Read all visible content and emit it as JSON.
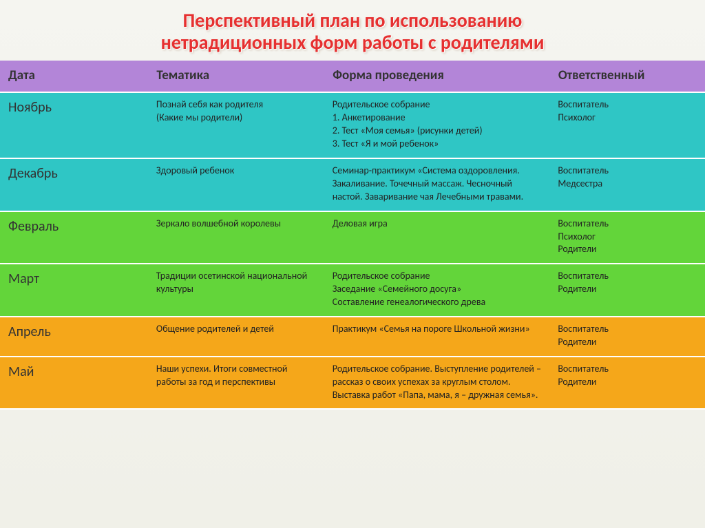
{
  "title_line1": "Перспективный план по использованию",
  "title_line2": "нетрадиционных форм работы с родителями",
  "title_color": "#e63030",
  "header_bg": "#b385d8",
  "columns": {
    "date": "Дата",
    "topic": "Тематика",
    "form": "Форма проведения",
    "resp": "Ответственный"
  },
  "rows": [
    {
      "bg": "#2fc6c5",
      "date": "Ноябрь",
      "topic": "Познай себя как родителя\n(Какие мы родители)",
      "form": "Родительское собрание\n1. Анкетирование\n2. Тест «Моя семья» (рисунки детей)\n3. Тест «Я и мой ребенок»",
      "resp": "Воспитатель\nПсихолог"
    },
    {
      "bg": "#2fc6c5",
      "date": "Декабрь",
      "topic": "Здоровый ребенок",
      "form": "Семинар-практикум «Система оздоровления. Закаливание. Точечный массаж. Чесночный настой. Заваривание чая Лечебными травами.",
      "resp": "Воспитатель\nМедсестра"
    },
    {
      "bg": "#63d53a",
      "date": "Февраль",
      "topic": "Зеркало волшебной королевы",
      "form": "Деловая игра",
      "resp": "Воспитатель\nПсихолог\nРодители"
    },
    {
      "bg": "#63d53a",
      "date": "Март",
      "topic": "Традиции осетинской национальной культуры",
      "form": "Родительское собрание\nЗаседание «Семейного досуга»\nСоставление генеалогического древа",
      "resp": "Воспитатель\nРодители"
    },
    {
      "bg": "#f5a71a",
      "date": "Апрель",
      "topic": "Общение родителей и детей",
      "form": "Практикум «Семья на пороге Школьной жизни»",
      "resp": "Воспитатель\nРодители"
    },
    {
      "bg": "#f5a71a",
      "date": "Май",
      "topic": "Наши успехи. Итоги совместной работы за год и перспективы",
      "form": "Родительское собрание. Выступление родителей – рассказ о своих успехах за круглым столом. Выставка работ «Папа, мама, я – дружная семья».",
      "resp": "Воспитатель\nРодители"
    }
  ]
}
